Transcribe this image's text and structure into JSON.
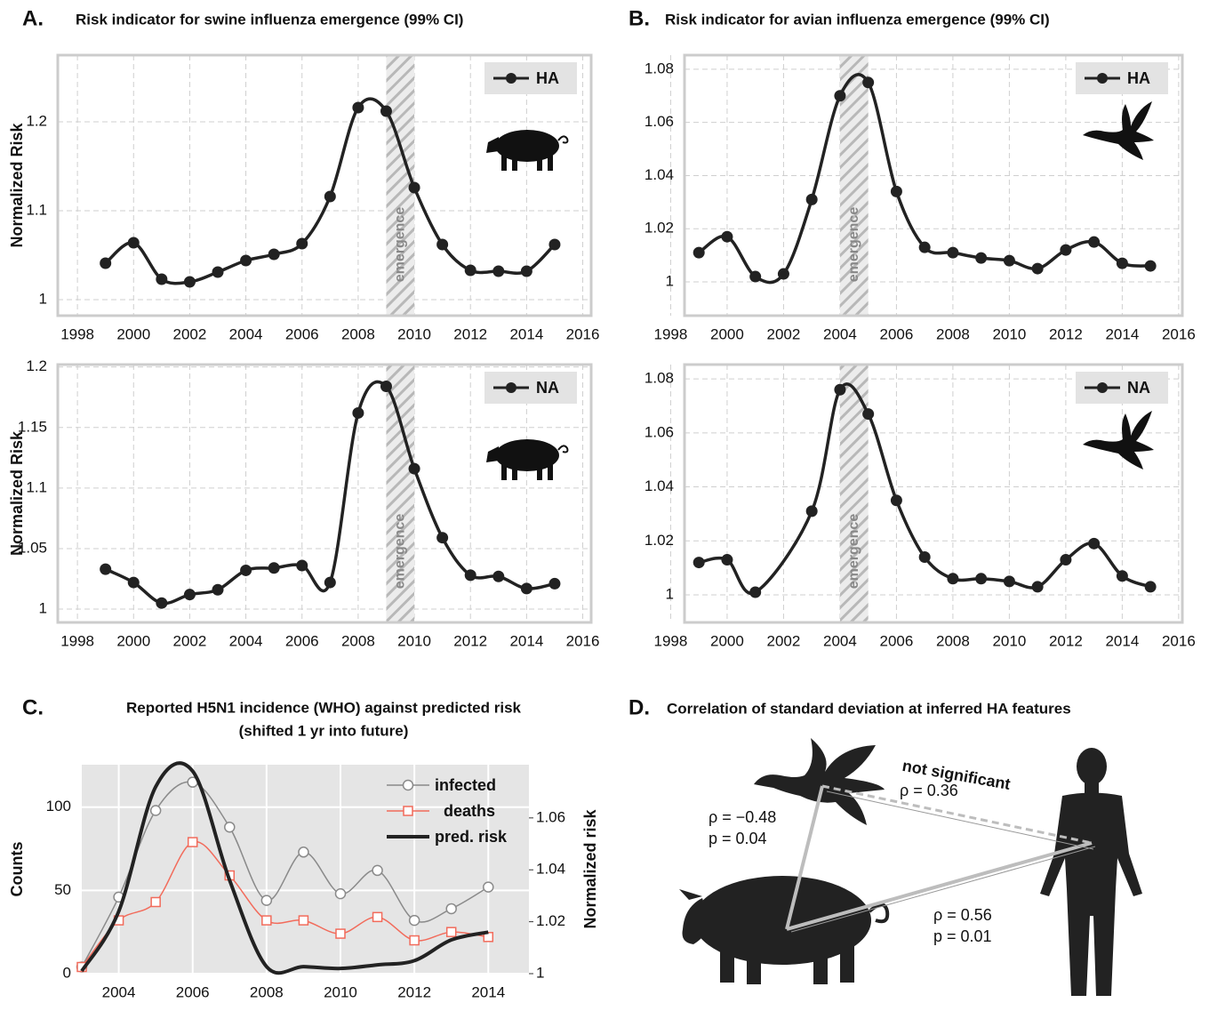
{
  "chart_data": [
    {
      "type": "line",
      "panel_label": "A.",
      "title": "Risk indicator for swine influenza emergence (99% CI)",
      "ylabel": "Normalized Risk",
      "icon": "pig",
      "x": [
        1999,
        2000,
        2001,
        2002,
        2003,
        2004,
        2005,
        2006,
        2007,
        2008,
        2009,
        2010,
        2011,
        2012,
        2013,
        2014,
        2015
      ],
      "series": [
        {
          "name": "HA",
          "color": "#222222",
          "values": [
            1.041,
            1.064,
            1.023,
            1.02,
            1.031,
            1.044,
            1.051,
            1.063,
            1.116,
            1.216,
            1.212,
            1.126,
            1.062,
            1.033,
            1.032,
            1.032,
            1.062
          ]
        }
      ],
      "xlim": [
        1997.3,
        2016.3
      ],
      "ylim": [
        0.982,
        1.275
      ],
      "xticks": [
        1998,
        2000,
        2002,
        2004,
        2006,
        2008,
        2010,
        2012,
        2014,
        2016
      ],
      "yticks": [
        1,
        1.1,
        1.2
      ],
      "emergence": {
        "range": [
          2009,
          2010
        ],
        "label": "emergence"
      },
      "grid": true,
      "legend": "upper right"
    },
    {
      "type": "line",
      "panel_label": "B.",
      "title": "Risk indicator for avian influenza emergence (99% CI)",
      "icon": "duck",
      "x": [
        1999,
        2000,
        2001,
        2002,
        2003,
        2004,
        2005,
        2006,
        2007,
        2008,
        2009,
        2010,
        2011,
        2012,
        2013,
        2014,
        2015
      ],
      "series": [
        {
          "name": "HA",
          "color": "#222222",
          "values": [
            1.011,
            1.017,
            1.002,
            1.003,
            1.031,
            1.07,
            1.075,
            1.034,
            1.013,
            1.011,
            1.009,
            1.008,
            1.005,
            1.012,
            1.015,
            1.007,
            1.006
          ]
        }
      ],
      "xlim": [
        1998.49,
        2016.13
      ],
      "ylim": [
        0.9873,
        1.0853
      ],
      "xticks": [
        1998,
        2000,
        2002,
        2004,
        2006,
        2008,
        2010,
        2012,
        2014,
        2016
      ],
      "yticks": [
        1,
        1.02,
        1.04,
        1.06,
        1.08
      ],
      "emergence": {
        "range": [
          2004,
          2005
        ],
        "label": "emergence"
      },
      "grid": true,
      "legend": "upper right"
    },
    {
      "type": "line",
      "ylabel": "Normalized Risk",
      "icon": "pig",
      "x": [
        1999,
        2000,
        2001,
        2002,
        2003,
        2004,
        2005,
        2006,
        2007,
        2008,
        2009,
        2010,
        2011,
        2012,
        2013,
        2014,
        2015
      ],
      "series": [
        {
          "name": "NA",
          "color": "#222222",
          "values": [
            1.033,
            1.022,
            1.005,
            1.012,
            1.016,
            1.032,
            1.034,
            1.036,
            1.022,
            1.162,
            1.184,
            1.116,
            1.059,
            1.028,
            1.027,
            1.017,
            1.021
          ]
        }
      ],
      "xlim": [
        1997.3,
        2016.3
      ],
      "ylim": [
        0.989,
        1.202
      ],
      "xticks": [
        1998,
        2000,
        2002,
        2004,
        2006,
        2008,
        2010,
        2012,
        2014,
        2016
      ],
      "yticks": [
        1,
        1.05,
        1.1,
        1.15,
        1.2
      ],
      "emergence": {
        "range": [
          2009,
          2010
        ],
        "label": "emergence"
      },
      "grid": true,
      "legend": "upper right"
    },
    {
      "type": "line",
      "icon": "duck",
      "x": [
        1999,
        2000,
        2001,
        2003,
        2004,
        2005,
        2006,
        2007,
        2008,
        2009,
        2010,
        2011,
        2012,
        2013,
        2014,
        2015
      ],
      "series": [
        {
          "name": "NA",
          "color": "#222222",
          "values": [
            1.012,
            1.013,
            1.001,
            1.031,
            1.076,
            1.067,
            1.035,
            1.014,
            1.006,
            1.006,
            1.005,
            1.003,
            1.013,
            1.019,
            1.007,
            1.003
          ]
        }
      ],
      "xlim": [
        1998.49,
        2016.13
      ],
      "ylim": [
        0.9898,
        1.0853
      ],
      "xticks": [
        1998,
        2000,
        2002,
        2004,
        2006,
        2008,
        2010,
        2012,
        2014,
        2016
      ],
      "yticks": [
        1,
        1.02,
        1.04,
        1.06,
        1.08
      ],
      "emergence": {
        "range": [
          2004,
          2005
        ],
        "label": "emergence"
      },
      "grid": true,
      "legend": "upper right"
    },
    {
      "type": "line",
      "panel_label": "C.",
      "title": "Reported H5N1 incidence (WHO) against predicted risk",
      "subtitle": "(shifted 1 yr into future)",
      "ylabel": "Counts",
      "y2label": "Normalized risk",
      "x": [
        2003,
        2004,
        2005,
        2006,
        2007,
        2008,
        2009,
        2010,
        2011,
        2012,
        2013,
        2014
      ],
      "series": [
        {
          "name": "infected",
          "color": "#8a8a8a",
          "marker": "circle",
          "values": [
            4,
            46,
            98,
            115,
            88,
            44,
            73,
            48,
            62,
            32,
            39,
            52
          ]
        },
        {
          "name": "deaths",
          "color": "#f26b5b",
          "marker": "square",
          "values": [
            4,
            32,
            43,
            79,
            59,
            32,
            32,
            24,
            34,
            20,
            25,
            22
          ]
        },
        {
          "name": "pred. risk",
          "color": "#222222",
          "axis": "y2",
          "values": [
            1.001,
            1.024,
            1.072,
            1.078,
            1.036,
            1.0027,
            1.0027,
            1.002,
            1.0034,
            1.005,
            1.013,
            1.016
          ]
        }
      ],
      "xlim": [
        2003,
        2015.1
      ],
      "ylim": [
        0,
        125.5
      ],
      "y2lim": [
        1,
        1.0805
      ],
      "xticks": [
        2004,
        2006,
        2008,
        2010,
        2012,
        2014
      ],
      "yticks": [
        0,
        50,
        100
      ],
      "y2ticks": [
        1,
        1.02,
        1.04,
        1.06
      ],
      "grid": true,
      "legend": "upper right"
    }
  ],
  "panel_d": {
    "panel_label": "D.",
    "title": "Correlation of standard deviation at inferred HA features",
    "annotations": {
      "not_significant": "not significant",
      "duck_human_rho": "ρ = 0.36",
      "duck_pig_rho": "ρ = −0.48",
      "duck_pig_p": "p = 0.04",
      "pig_human_rho": "ρ = 0.56",
      "pig_human_p": "p = 0.01"
    }
  }
}
